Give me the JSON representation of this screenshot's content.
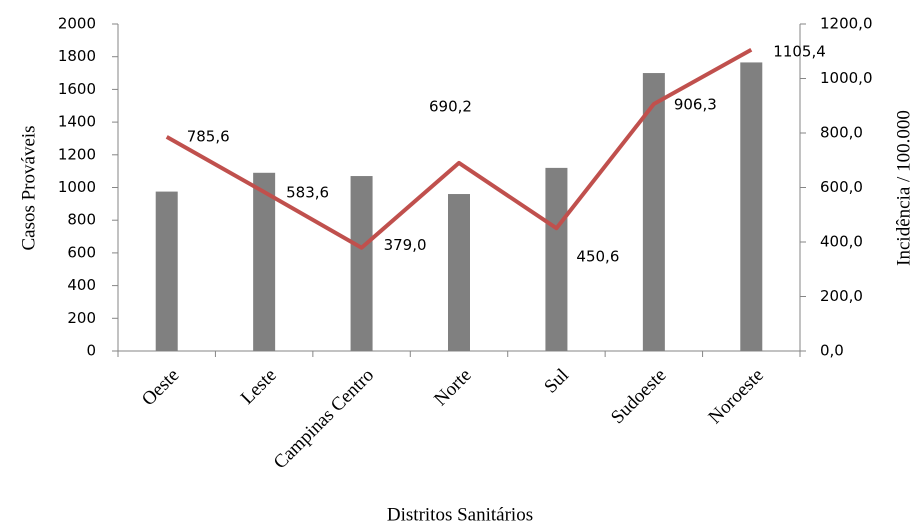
{
  "chart_data": {
    "type": "bar",
    "x_label": "Distritos Sanitários",
    "y_label": "Casos Prováveis",
    "y2_label": "Incidência / 100.000",
    "categories": [
      "Oeste",
      "Leste",
      "Campinas Centro",
      "Norte",
      "Sul",
      "Sudoeste",
      "Noroeste"
    ],
    "series": [
      {
        "type": "bar",
        "color": "#808080",
        "values": [
          975,
          1090,
          1070,
          960,
          1120,
          1700,
          1765
        ]
      },
      {
        "type": "line",
        "axis": "y2",
        "color": "#c0504d",
        "values": [
          785.6,
          583.6,
          379.0,
          690.2,
          450.6,
          906.3,
          1105.4
        ],
        "value_labels": [
          "785,6",
          "583,6",
          "379,0",
          "690,2",
          "450,6",
          "906,3",
          "1105,4"
        ]
      }
    ],
    "ylim": [
      0,
      2000
    ],
    "yticks": [
      0,
      200,
      400,
      600,
      800,
      1000,
      1200,
      1400,
      1600,
      1800,
      2000
    ],
    "y2lim": [
      0,
      1200
    ],
    "y2ticks": [
      {
        "value": 0,
        "label": "0,0"
      },
      {
        "value": 200,
        "label": "200,0"
      },
      {
        "value": 400,
        "label": "400,0"
      },
      {
        "value": 600,
        "label": "600,0"
      },
      {
        "value": 800,
        "label": "800,0"
      },
      {
        "value": 1000,
        "label": "1000,0"
      },
      {
        "value": 1200,
        "label": "1200,0"
      }
    ],
    "grid": false
  }
}
